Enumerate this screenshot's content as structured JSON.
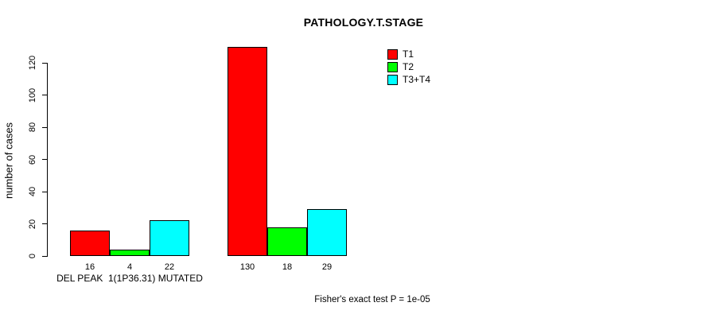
{
  "chart_data": {
    "type": "bar",
    "title": "PATHOLOGY.T.STAGE",
    "ylabel": "number of cases",
    "xlabel": "",
    "ylim": [
      0,
      130
    ],
    "yticks": [
      0,
      20,
      40,
      60,
      80,
      100,
      120
    ],
    "grid": false,
    "legend_position": "top-right",
    "series": [
      {
        "name": "T1",
        "color": "#ff0000"
      },
      {
        "name": "T2",
        "color": "#00ff00"
      },
      {
        "name": "T3+T4",
        "color": "#00ffff"
      }
    ],
    "groups": [
      {
        "label": "DEL PEAK  1(1P36.31) MUTATED",
        "values": [
          16,
          4,
          22
        ],
        "value_labels": [
          "16",
          "4",
          "22"
        ]
      },
      {
        "label": "",
        "values": [
          130,
          18,
          29
        ],
        "value_labels": [
          "130",
          "18",
          "29"
        ]
      }
    ],
    "footer": "Fisher's exact test P = 1e-05",
    "axis_color": "#000000"
  }
}
